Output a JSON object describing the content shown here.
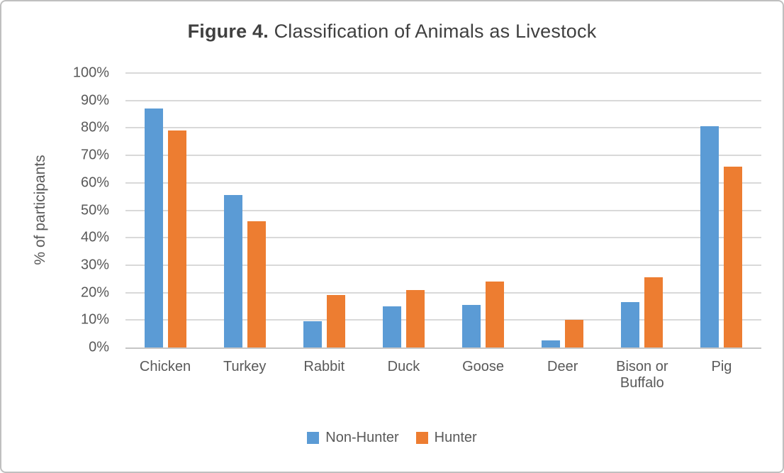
{
  "title": {
    "prefix": "Figure 4.",
    "rest": " Classification of Animals as Livestock"
  },
  "colors": {
    "non_hunter_blue": "#5B9BD5",
    "hunter_orange": "#ED7D31",
    "gridline": "#D9D9D9",
    "axis_line": "#C6C6C6",
    "text_gray": "#595959",
    "title_gray": "#404040",
    "frame_border": "#BFBFBF"
  },
  "y_axis": {
    "ticks": [
      "100%",
      "90%",
      "80%",
      "70%",
      "60%",
      "50%",
      "40%",
      "30%",
      "20%",
      "10%",
      "0%"
    ]
  },
  "chart_data": {
    "type": "bar",
    "title": "Figure 4. Classification of Animals as Livestock",
    "ylabel": "% of participants",
    "xlabel": "",
    "ylim": [
      0,
      100
    ],
    "ytick_step": 10,
    "grid": true,
    "legend_position": "bottom",
    "categories": [
      "Chicken",
      "Turkey",
      "Rabbit",
      "Duck",
      "Goose",
      "Deer",
      "Bison or Buffalo",
      "Pig"
    ],
    "series": [
      {
        "name": "Non-Hunter",
        "color": "#5B9BD5",
        "values": [
          87,
          55.5,
          9.5,
          15,
          15.5,
          2.5,
          16.5,
          80.5
        ]
      },
      {
        "name": "Hunter",
        "color": "#ED7D31",
        "values": [
          79,
          46,
          19,
          21,
          24,
          10,
          25.5,
          66
        ]
      }
    ]
  }
}
